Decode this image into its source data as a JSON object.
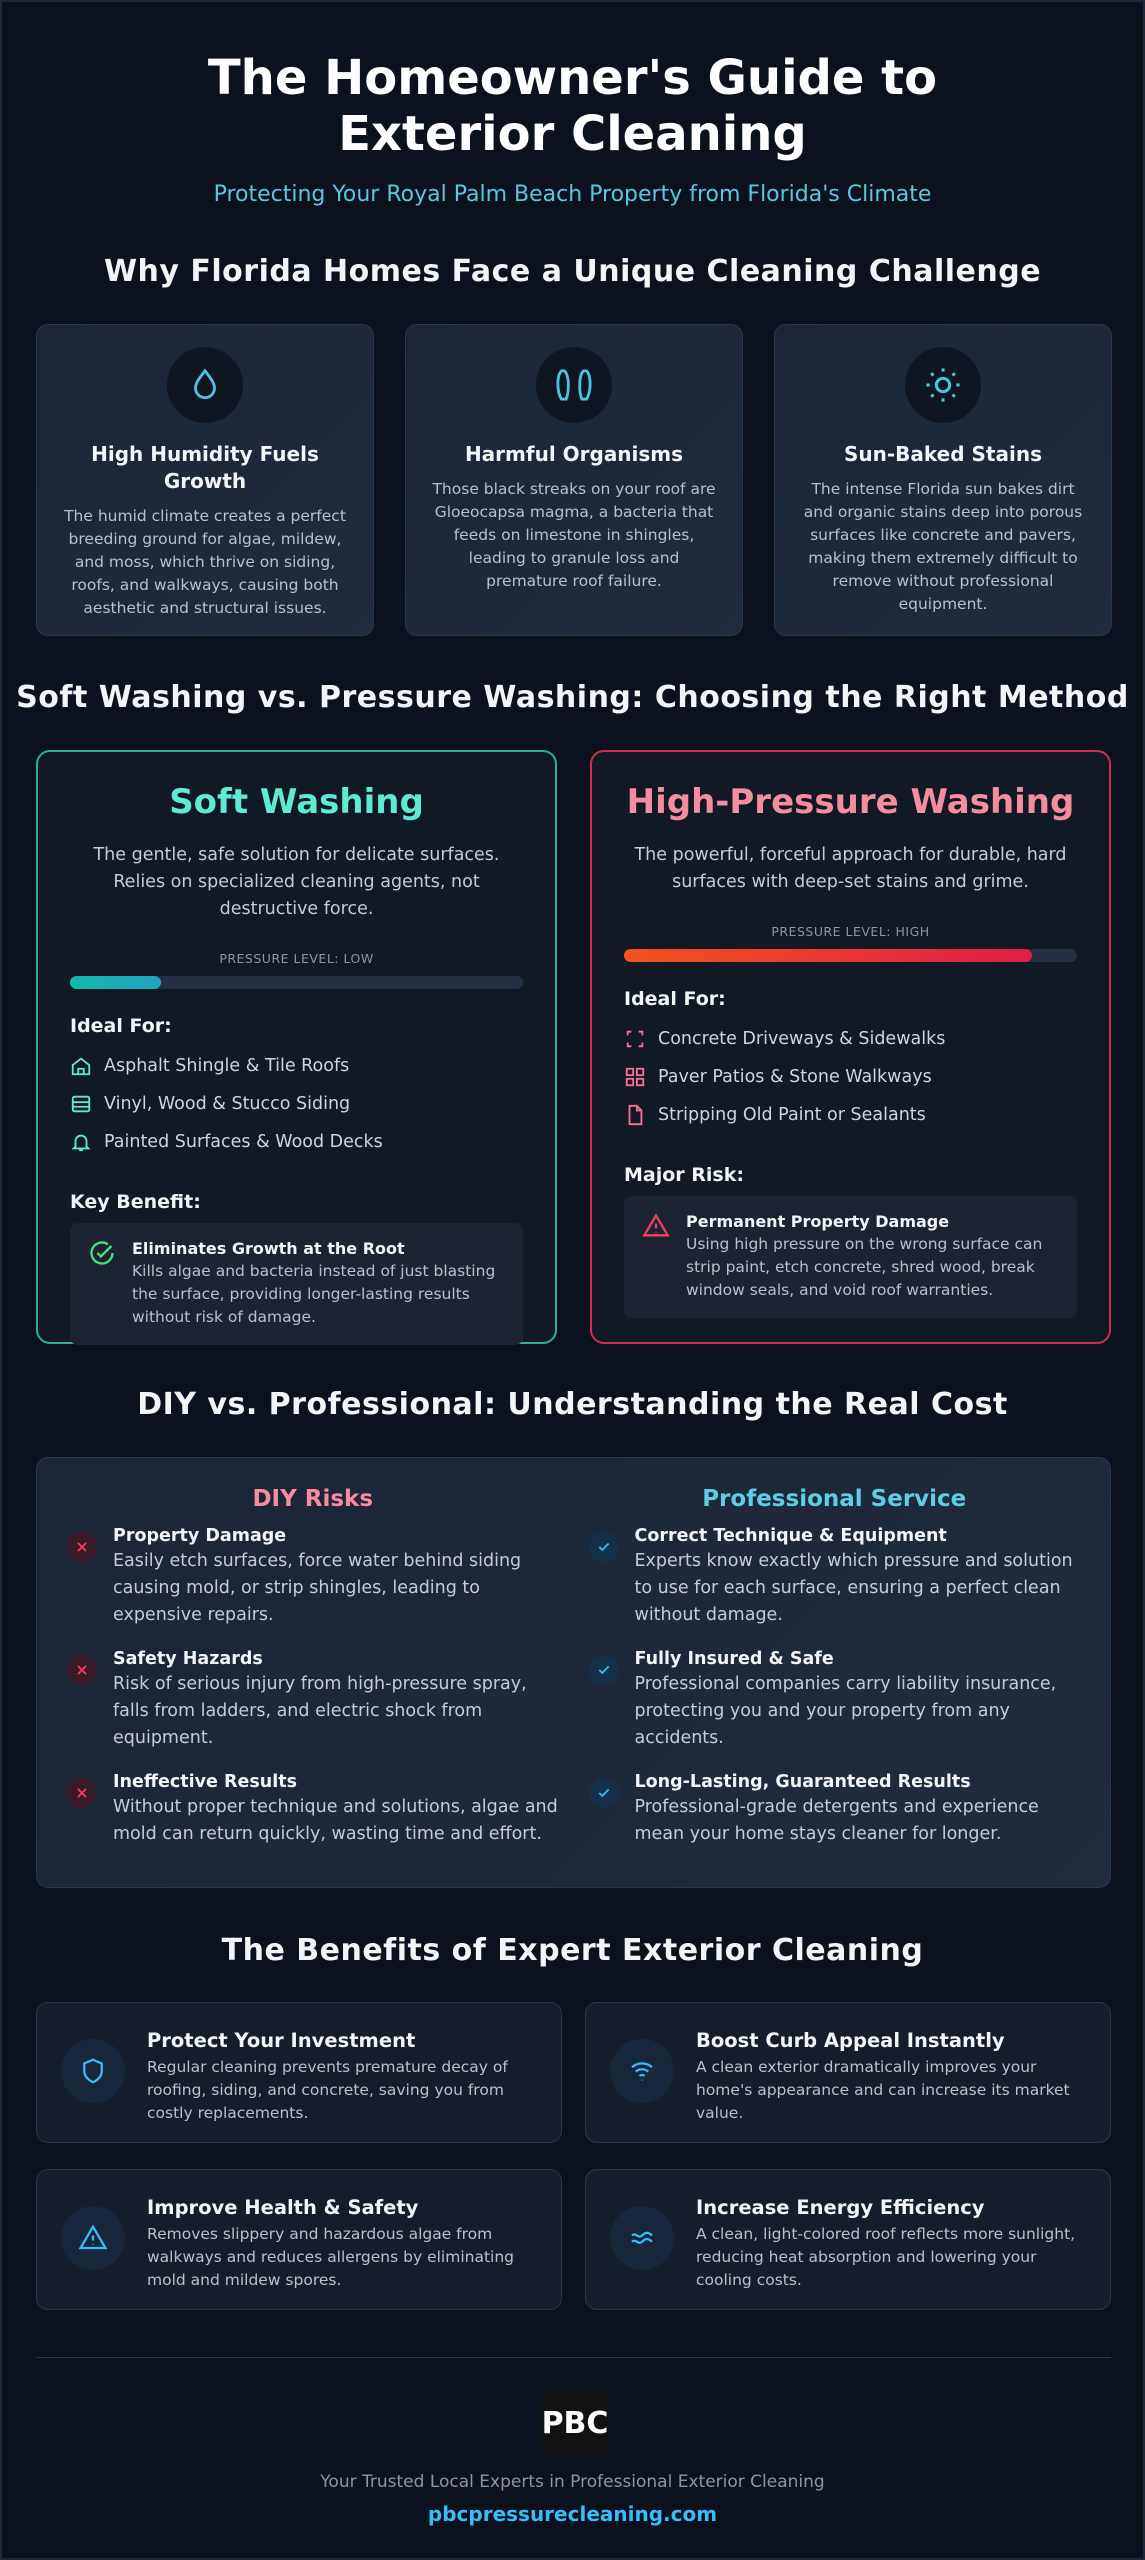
{
  "header": {
    "title": "The Homeowner's Guide to Exterior Cleaning",
    "subtitle": "Protecting Your Royal Palm Beach Property from Florida's Climate"
  },
  "challenges": {
    "heading": "Why Florida Homes Face a Unique Cleaning Challenge",
    "cards": [
      {
        "title": "High Humidity Fuels Growth",
        "text": "The humid climate creates a perfect breeding ground for algae, mildew, and moss, which thrive on siding, roofs, and walkways, causing both aesthetic and structural issues."
      },
      {
        "title": "Harmful Organisms",
        "text": "Those black streaks on your roof are Gloeocapsa magma, a bacteria that feeds on limestone in shingles, leading to granule loss and premature roof failure."
      },
      {
        "title": "Sun-Baked Stains",
        "text": "The intense Florida sun bakes dirt and organic stains deep into porous surfaces like concrete and pavers, making them extremely difficult to remove without professional equipment."
      }
    ]
  },
  "methods": {
    "heading": "Soft Washing vs. Pressure Washing: Choosing the Right Method",
    "cards": [
      {
        "title": "Soft Washing",
        "intro": "The gentle, safe solution for delicate surfaces. Relies on specialized cleaning agents, not destructive force.",
        "pressure_label": "PRESSURE LEVEL: LOW",
        "ideal_heading": "Ideal For:",
        "ideal_items": [
          "Asphalt Shingle & Tile Roofs",
          "Vinyl, Wood & Stucco Siding",
          "Painted Surfaces & Wood Decks"
        ],
        "note_heading": "Key Benefit:",
        "note_title": "Eliminates Growth at the Root",
        "note_text": "Kills algae and bacteria instead of just blasting the surface, providing longer-lasting results without risk of damage."
      },
      {
        "title": "High-Pressure Washing",
        "intro": "The powerful, forceful approach for durable, hard surfaces with deep-set stains and grime.",
        "pressure_label": "PRESSURE LEVEL: HIGH",
        "ideal_heading": "Ideal For:",
        "ideal_items": [
          "Concrete Driveways & Sidewalks",
          "Paver Patios & Stone Walkways",
          "Stripping Old Paint or Sealants"
        ],
        "note_heading": "Major Risk:",
        "note_title": "Permanent Property Damage",
        "note_text": "Using high pressure on the wrong surface can strip paint, etch concrete, shred wood, break window seals, and void roof warranties."
      }
    ]
  },
  "cost": {
    "heading": "DIY vs. Professional: Understanding the Real Cost",
    "diy": {
      "heading": "DIY Risks",
      "items": [
        {
          "title": "Property Damage",
          "text": "Easily etch surfaces, force water behind siding causing mold, or strip shingles, leading to expensive repairs."
        },
        {
          "title": "Safety Hazards",
          "text": "Risk of serious injury from high-pressure spray, falls from ladders, and electric shock from equipment."
        },
        {
          "title": "Ineffective Results",
          "text": "Without proper technique and solutions, algae and mold can return quickly, wasting time and effort."
        }
      ]
    },
    "pro": {
      "heading": "Professional Service",
      "items": [
        {
          "title": "Correct Technique & Equipment",
          "text": "Experts know exactly which pressure and solution to use for each surface, ensuring a perfect clean without damage."
        },
        {
          "title": "Fully Insured & Safe",
          "text": "Professional companies carry liability insurance, protecting you and your property from any accidents."
        },
        {
          "title": "Long-Lasting, Guaranteed Results",
          "text": "Professional-grade detergents and experience mean your home stays cleaner for longer."
        }
      ]
    }
  },
  "benefits": {
    "heading": "The Benefits of Expert Exterior Cleaning",
    "items": [
      {
        "title": "Protect Your Investment",
        "text": "Regular cleaning prevents premature decay of roofing, siding, and concrete, saving you from costly replacements."
      },
      {
        "title": "Boost Curb Appeal Instantly",
        "text": "A clean exterior dramatically improves your home's appearance and can increase its market value."
      },
      {
        "title": "Improve Health & Safety",
        "text": "Removes slippery and hazardous algae from walkways and reduces allergens by eliminating mold and mildew spores."
      },
      {
        "title": "Increase Energy Efficiency",
        "text": "A clean, light-colored roof reflects more sunlight, reducing heat absorption and lowering your cooling costs."
      }
    ]
  },
  "footer": {
    "logo": "PBC",
    "tagline": "Your Trusted Local Experts in Professional Exterior Cleaning",
    "url": "pbcpressurecleaning.com"
  }
}
